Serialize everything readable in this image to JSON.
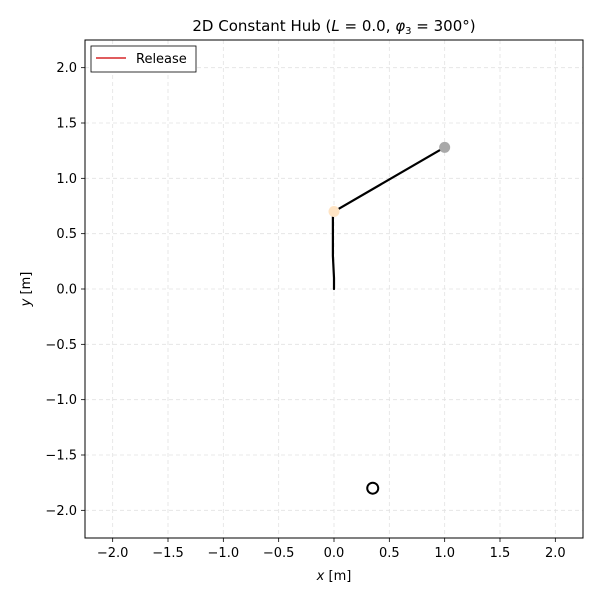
{
  "chart_data": {
    "type": "line",
    "title_text": "2D Constant Hub (",
    "title_L_var": "L",
    "title_L_eq": " = 0.0, ",
    "title_phi_var": "φ",
    "title_phi_sub": "3",
    "title_phi_eq": " = 300°)",
    "xlabel_var": "x",
    "xlabel_unit": " [m]",
    "ylabel_var": "y",
    "ylabel_unit": " [m]",
    "xlim": [
      -2.25,
      2.25
    ],
    "ylim": [
      -2.25,
      2.25
    ],
    "xticks": [
      -2.0,
      -1.5,
      -1.0,
      -0.5,
      0.0,
      0.5,
      1.0,
      1.5,
      2.0
    ],
    "yticks": [
      -2.0,
      -1.5,
      -1.0,
      -0.5,
      0.0,
      0.5,
      1.0,
      1.5,
      2.0
    ],
    "xtick_labels": [
      "−2.0",
      "−1.5",
      "−1.0",
      "−0.5",
      "0.0",
      "0.5",
      "1.0",
      "1.5",
      "2.0"
    ],
    "ytick_labels": [
      "−2.0",
      "−1.5",
      "−1.0",
      "−0.5",
      "0.0",
      "0.5",
      "1.0",
      "1.5",
      "2.0"
    ],
    "grid": true,
    "legend": {
      "placement": "top-left",
      "entries": [
        {
          "label": "Release",
          "color": "#d62728"
        }
      ]
    },
    "series": [
      {
        "name": "trace",
        "color": "#000000",
        "x": [
          0.0,
          0.0,
          -0.01,
          -0.01,
          -0.01,
          0.0
        ],
        "y": [
          0.0,
          0.1,
          0.3,
          0.5,
          0.65,
          0.7
        ]
      },
      {
        "name": "arm",
        "color": "#000000",
        "x": [
          0.0,
          1.0
        ],
        "y": [
          0.7,
          1.28
        ]
      }
    ],
    "points": [
      {
        "name": "hub",
        "x": 0.0,
        "y": 0.7,
        "fill": "#ffe4c4",
        "stroke": "none"
      },
      {
        "name": "tip",
        "x": 1.0,
        "y": 1.28,
        "fill": "#a9a9a9",
        "stroke": "none"
      },
      {
        "name": "target",
        "x": 0.35,
        "y": -1.8,
        "fill": "none",
        "stroke": "#000000"
      }
    ]
  }
}
